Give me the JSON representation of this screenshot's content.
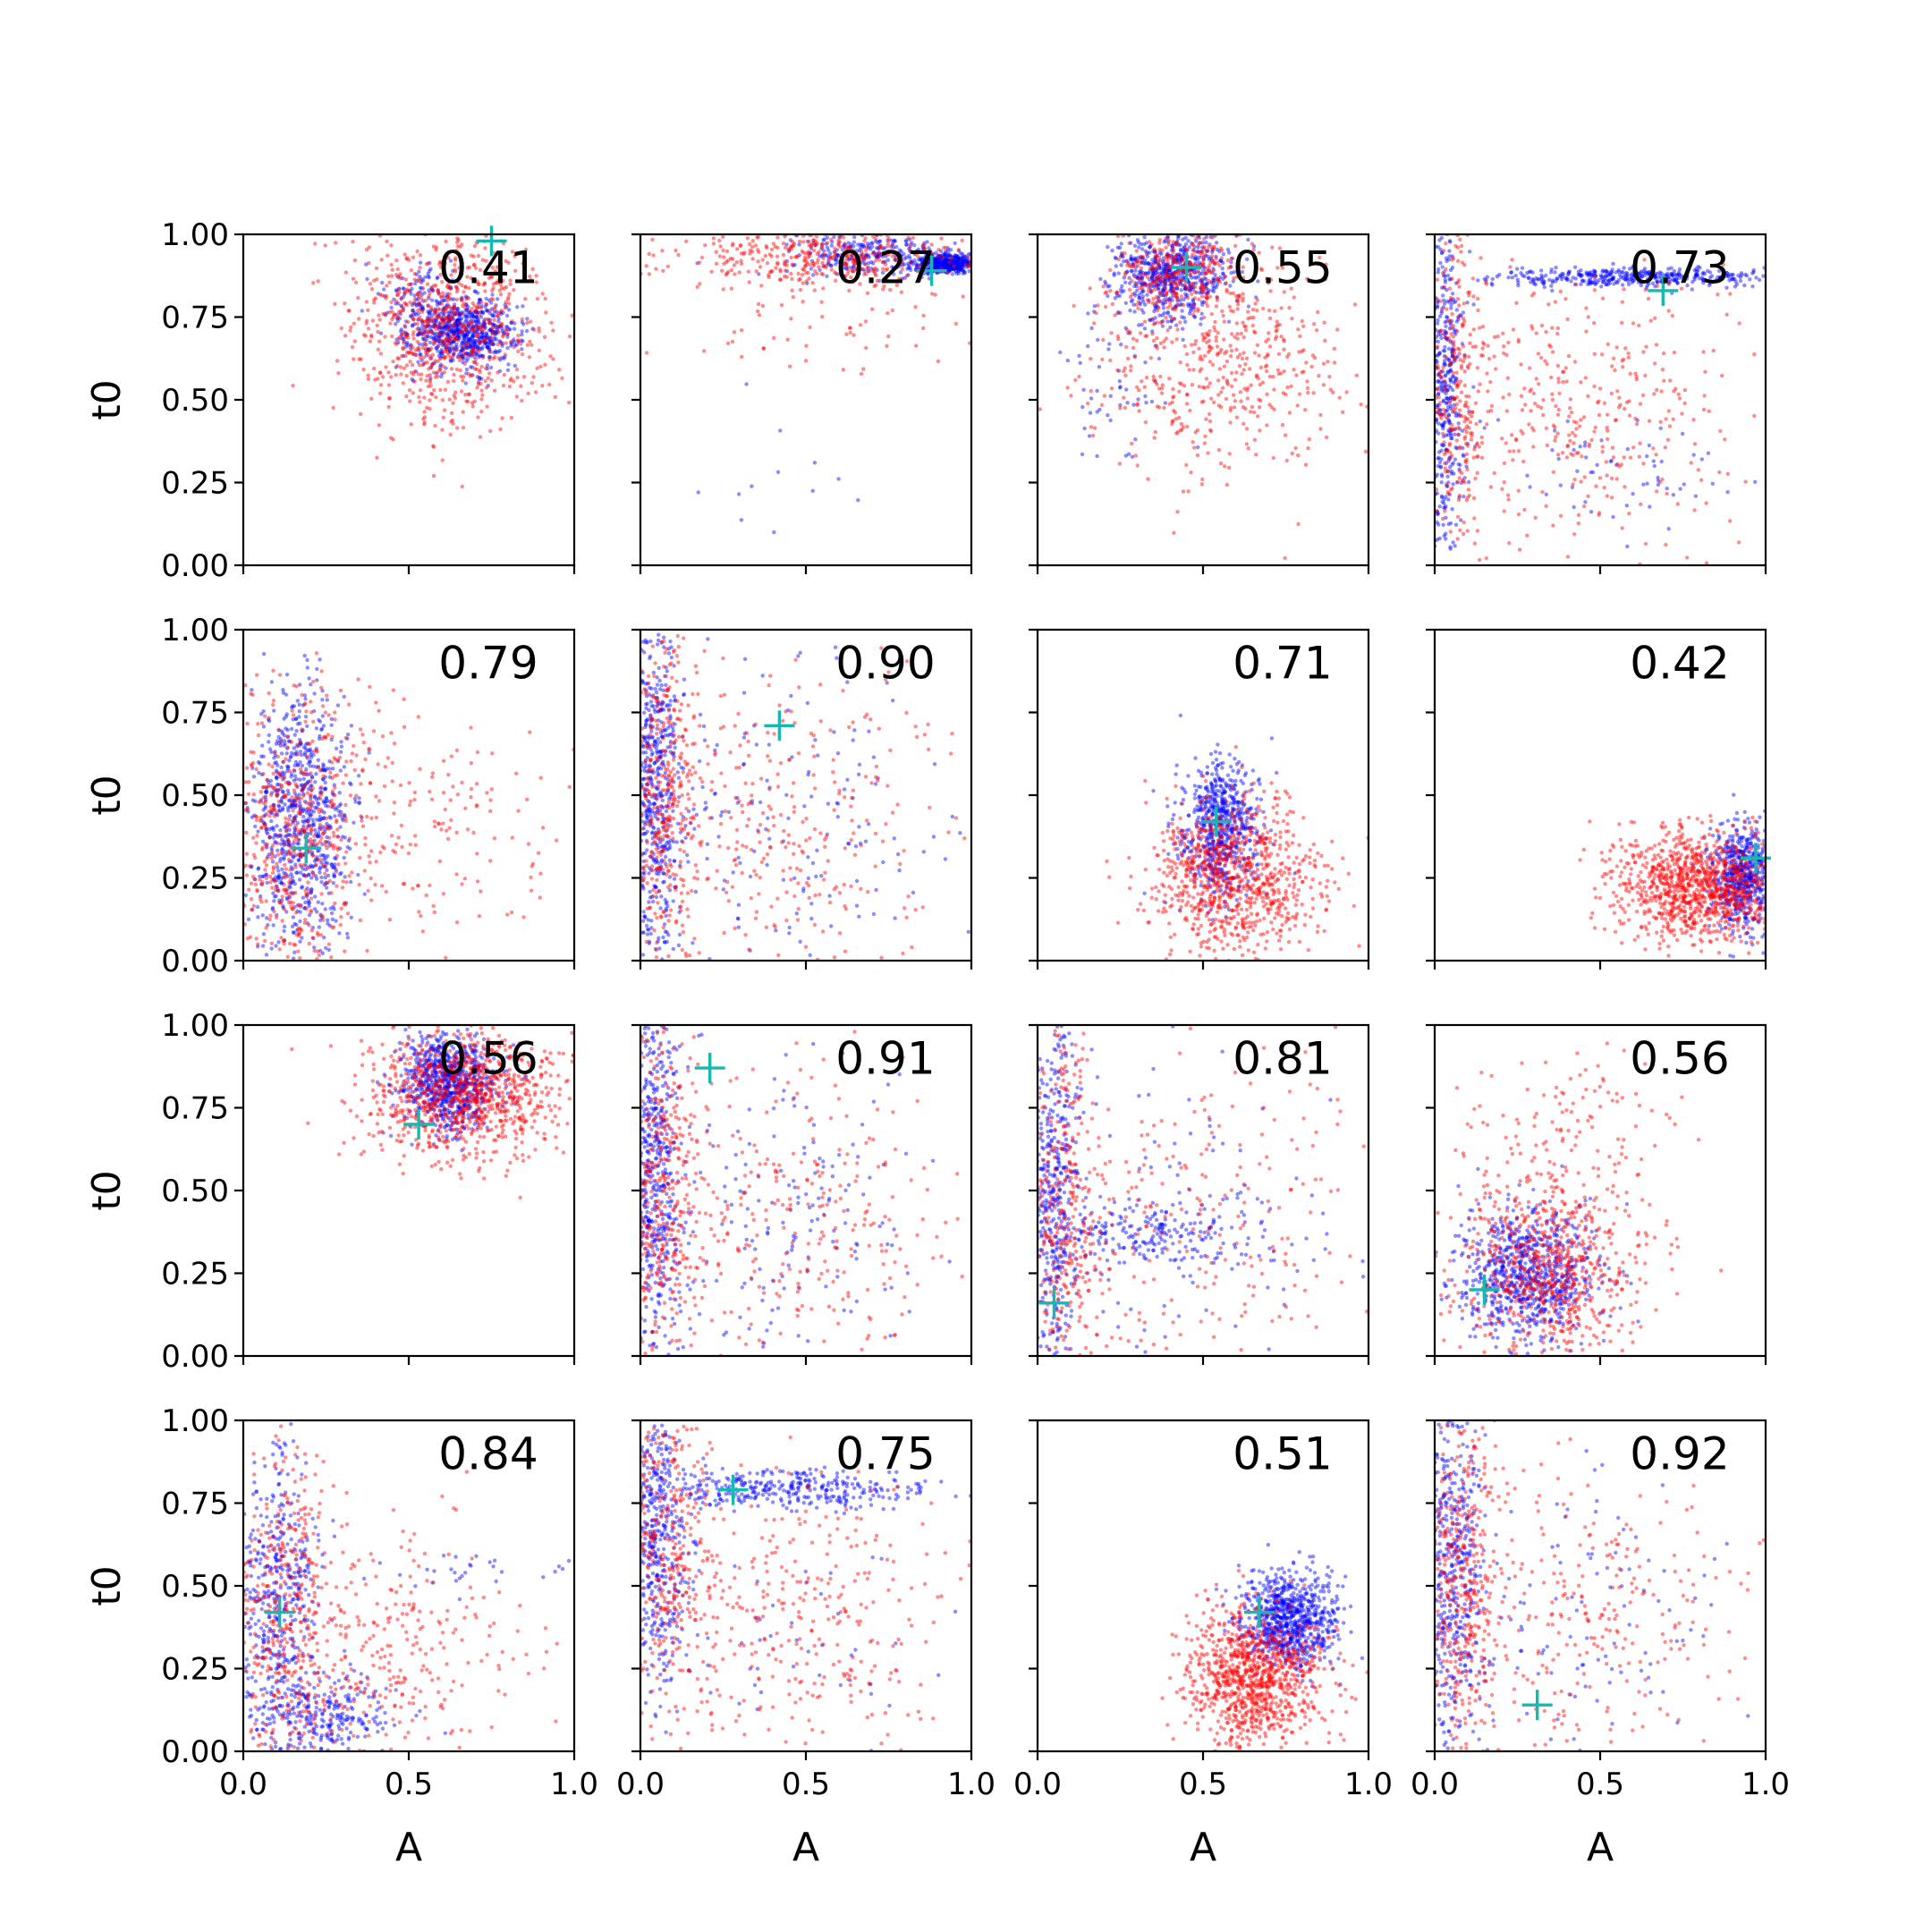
{
  "chart_data": {
    "type": "scatter",
    "grid": false,
    "rows": 4,
    "cols": 4,
    "xlabel": "A",
    "ylabel": "t0",
    "xlim": [
      0,
      1
    ],
    "ylim": [
      0,
      1
    ],
    "x_ticks": [
      0.0,
      0.5,
      1.0
    ],
    "x_tick_labels": [
      "0.0",
      "0.5",
      "1.0"
    ],
    "y_ticks": [
      0.0,
      0.25,
      0.5,
      0.75,
      1.0
    ],
    "y_tick_labels": [
      "0.00",
      "0.25",
      "0.50",
      "0.75",
      "1.00"
    ],
    "series_colors": {
      "blue": "#0000ff",
      "red": "#ff0000",
      "marker": "#17b8b0"
    },
    "series": [
      {
        "color": "blue",
        "description": "blue posterior samples"
      },
      {
        "color": "red",
        "description": "red posterior samples"
      }
    ],
    "panels": [
      {
        "row": 0,
        "col": 0,
        "score": "0.41",
        "truth": [
          0.75,
          0.98
        ],
        "blue": [
          {
            "mx": 0.67,
            "my": 0.7,
            "sx": 0.08,
            "sy": 0.05,
            "n": 650
          },
          {
            "mx": 0.55,
            "my": 0.8,
            "sx": 0.06,
            "sy": 0.07,
            "n": 150
          }
        ],
        "red": [
          {
            "mx": 0.62,
            "my": 0.72,
            "sx": 0.15,
            "sy": 0.15,
            "n": 800
          }
        ]
      },
      {
        "row": 0,
        "col": 1,
        "score": "0.27",
        "truth": [
          0.88,
          0.89
        ],
        "blue": [
          {
            "mx": 0.93,
            "my": 0.91,
            "sx": 0.05,
            "sy": 0.015,
            "n": 500
          },
          {
            "mx": 0.7,
            "my": 0.94,
            "sx": 0.12,
            "sy": 0.03,
            "n": 250
          },
          {
            "mx": 0.35,
            "my": 0.25,
            "sx": 0.2,
            "sy": 0.12,
            "n": 12
          }
        ],
        "red": [
          {
            "mx": 0.55,
            "my": 0.93,
            "sx": 0.25,
            "sy": 0.05,
            "n": 450
          },
          {
            "mx": 0.55,
            "my": 0.72,
            "sx": 0.25,
            "sy": 0.1,
            "n": 50
          }
        ]
      },
      {
        "row": 0,
        "col": 2,
        "score": "0.55",
        "truth": [
          0.45,
          0.9
        ],
        "blue": [
          {
            "mx": 0.4,
            "my": 0.88,
            "sx": 0.09,
            "sy": 0.07,
            "n": 650
          },
          {
            "mx": 0.25,
            "my": 0.55,
            "sx": 0.1,
            "sy": 0.15,
            "n": 60
          }
        ],
        "red": [
          {
            "mx": 0.42,
            "my": 0.88,
            "sx": 0.1,
            "sy": 0.07,
            "n": 300
          },
          {
            "mx": 0.55,
            "my": 0.62,
            "sx": 0.2,
            "sy": 0.18,
            "n": 500
          }
        ]
      },
      {
        "row": 0,
        "col": 3,
        "score": "0.73",
        "truth": [
          0.69,
          0.83
        ],
        "blue": [
          {
            "mx": 0.03,
            "my": 0.55,
            "sx": 0.03,
            "sy": 0.28,
            "n": 450
          },
          {
            "mx": 0.62,
            "my": 0.87,
            "sx": 0.22,
            "sy": 0.015,
            "n": 400
          },
          {
            "mx": 0.5,
            "my": 0.3,
            "sx": 0.2,
            "sy": 0.1,
            "n": 60
          }
        ],
        "red": [
          {
            "mx": 0.06,
            "my": 0.55,
            "sx": 0.05,
            "sy": 0.28,
            "n": 300
          },
          {
            "mx": 0.45,
            "my": 0.45,
            "sx": 0.25,
            "sy": 0.22,
            "n": 380
          }
        ]
      },
      {
        "row": 1,
        "col": 0,
        "score": "0.79",
        "truth": [
          0.19,
          0.34
        ],
        "blue": [
          {
            "mx": 0.17,
            "my": 0.42,
            "sx": 0.08,
            "sy": 0.2,
            "n": 800
          }
        ],
        "red": [
          {
            "mx": 0.15,
            "my": 0.38,
            "sx": 0.1,
            "sy": 0.22,
            "n": 500
          },
          {
            "mx": 0.5,
            "my": 0.4,
            "sx": 0.25,
            "sy": 0.2,
            "n": 220
          }
        ]
      },
      {
        "row": 1,
        "col": 1,
        "score": "0.90",
        "truth": [
          0.42,
          0.71
        ],
        "blue": [
          {
            "mx": 0.04,
            "my": 0.55,
            "sx": 0.04,
            "sy": 0.28,
            "n": 550
          },
          {
            "mx": 0.4,
            "my": 0.4,
            "sx": 0.25,
            "sy": 0.25,
            "n": 200
          }
        ],
        "red": [
          {
            "mx": 0.07,
            "my": 0.5,
            "sx": 0.06,
            "sy": 0.28,
            "n": 400
          },
          {
            "mx": 0.45,
            "my": 0.4,
            "sx": 0.25,
            "sy": 0.25,
            "n": 300
          }
        ]
      },
      {
        "row": 1,
        "col": 2,
        "score": "0.71",
        "truth": [
          0.54,
          0.42
        ],
        "blue": [
          {
            "mx": 0.55,
            "my": 0.4,
            "sx": 0.06,
            "sy": 0.1,
            "n": 650
          }
        ],
        "red": [
          {
            "mx": 0.6,
            "my": 0.25,
            "sx": 0.12,
            "sy": 0.12,
            "n": 900
          }
        ]
      },
      {
        "row": 1,
        "col": 3,
        "score": "0.42",
        "truth": [
          0.97,
          0.31
        ],
        "blue": [
          {
            "mx": 0.93,
            "my": 0.25,
            "sx": 0.05,
            "sy": 0.08,
            "n": 600
          }
        ],
        "red": [
          {
            "mx": 0.8,
            "my": 0.22,
            "sx": 0.13,
            "sy": 0.08,
            "n": 1100
          }
        ]
      },
      {
        "row": 2,
        "col": 0,
        "score": "0.56",
        "truth": [
          0.53,
          0.7
        ],
        "blue": [
          {
            "mx": 0.62,
            "my": 0.83,
            "sx": 0.07,
            "sy": 0.07,
            "n": 800
          }
        ],
        "red": [
          {
            "mx": 0.67,
            "my": 0.8,
            "sx": 0.15,
            "sy": 0.1,
            "n": 950
          }
        ]
      },
      {
        "row": 2,
        "col": 1,
        "score": "0.91",
        "truth": [
          0.21,
          0.87
        ],
        "blue": [
          {
            "mx": 0.04,
            "my": 0.55,
            "sx": 0.04,
            "sy": 0.28,
            "n": 550
          },
          {
            "mx": 0.4,
            "my": 0.4,
            "sx": 0.25,
            "sy": 0.25,
            "n": 200
          }
        ],
        "red": [
          {
            "mx": 0.07,
            "my": 0.5,
            "sx": 0.06,
            "sy": 0.28,
            "n": 400
          },
          {
            "mx": 0.45,
            "my": 0.4,
            "sx": 0.25,
            "sy": 0.25,
            "n": 300
          }
        ]
      },
      {
        "row": 2,
        "col": 2,
        "score": "0.81",
        "truth": [
          0.05,
          0.16
        ],
        "blue": [
          {
            "mx": 0.05,
            "my": 0.5,
            "sx": 0.04,
            "sy": 0.28,
            "n": 450
          },
          {
            "mx": 0.35,
            "my": 0.37,
            "sx": 0.15,
            "sy": 0.05,
            "n": 200
          },
          {
            "mx": 0.45,
            "my": 0.4,
            "sx": 0.25,
            "sy": 0.25,
            "n": 120
          }
        ],
        "red": [
          {
            "mx": 0.08,
            "my": 0.45,
            "sx": 0.06,
            "sy": 0.28,
            "n": 350
          },
          {
            "mx": 0.45,
            "my": 0.4,
            "sx": 0.25,
            "sy": 0.25,
            "n": 250
          }
        ]
      },
      {
        "row": 2,
        "col": 3,
        "score": "0.56",
        "truth": [
          0.15,
          0.2
        ],
        "blue": [
          {
            "mx": 0.28,
            "my": 0.25,
            "sx": 0.1,
            "sy": 0.1,
            "n": 800
          }
        ],
        "red": [
          {
            "mx": 0.35,
            "my": 0.25,
            "sx": 0.14,
            "sy": 0.15,
            "n": 700
          },
          {
            "mx": 0.4,
            "my": 0.6,
            "sx": 0.15,
            "sy": 0.15,
            "n": 150
          }
        ]
      },
      {
        "row": 3,
        "col": 0,
        "score": "0.84",
        "truth": [
          0.11,
          0.42
        ],
        "blue": [
          {
            "mx": 0.11,
            "my": 0.4,
            "sx": 0.06,
            "sy": 0.25,
            "n": 500
          },
          {
            "mx": 0.25,
            "my": 0.1,
            "sx": 0.1,
            "sy": 0.07,
            "n": 250
          },
          {
            "mx": 0.7,
            "my": 0.55,
            "sx": 0.15,
            "sy": 0.03,
            "n": 30
          }
        ],
        "red": [
          {
            "mx": 0.12,
            "my": 0.4,
            "sx": 0.08,
            "sy": 0.25,
            "n": 400
          },
          {
            "mx": 0.45,
            "my": 0.3,
            "sx": 0.2,
            "sy": 0.18,
            "n": 300
          }
        ]
      },
      {
        "row": 3,
        "col": 1,
        "score": "0.75",
        "truth": [
          0.28,
          0.79
        ],
        "blue": [
          {
            "mx": 0.05,
            "my": 0.65,
            "sx": 0.05,
            "sy": 0.22,
            "n": 450
          },
          {
            "mx": 0.45,
            "my": 0.79,
            "sx": 0.22,
            "sy": 0.03,
            "n": 350
          },
          {
            "mx": 0.4,
            "my": 0.4,
            "sx": 0.25,
            "sy": 0.2,
            "n": 60
          }
        ],
        "red": [
          {
            "mx": 0.08,
            "my": 0.65,
            "sx": 0.07,
            "sy": 0.25,
            "n": 350
          },
          {
            "mx": 0.45,
            "my": 0.4,
            "sx": 0.25,
            "sy": 0.22,
            "n": 350
          }
        ]
      },
      {
        "row": 3,
        "col": 2,
        "score": "0.51",
        "truth": [
          0.67,
          0.42
        ],
        "blue": [
          {
            "mx": 0.76,
            "my": 0.4,
            "sx": 0.07,
            "sy": 0.07,
            "n": 800
          }
        ],
        "red": [
          {
            "mx": 0.66,
            "my": 0.22,
            "sx": 0.1,
            "sy": 0.1,
            "n": 1000
          }
        ]
      },
      {
        "row": 3,
        "col": 3,
        "score": "0.92",
        "truth": [
          0.31,
          0.14
        ],
        "blue": [
          {
            "mx": 0.05,
            "my": 0.5,
            "sx": 0.05,
            "sy": 0.28,
            "n": 500
          },
          {
            "mx": 0.45,
            "my": 0.4,
            "sx": 0.25,
            "sy": 0.25,
            "n": 120
          }
        ],
        "red": [
          {
            "mx": 0.08,
            "my": 0.5,
            "sx": 0.06,
            "sy": 0.28,
            "n": 400
          },
          {
            "mx": 0.45,
            "my": 0.4,
            "sx": 0.25,
            "sy": 0.25,
            "n": 300
          }
        ]
      }
    ]
  }
}
